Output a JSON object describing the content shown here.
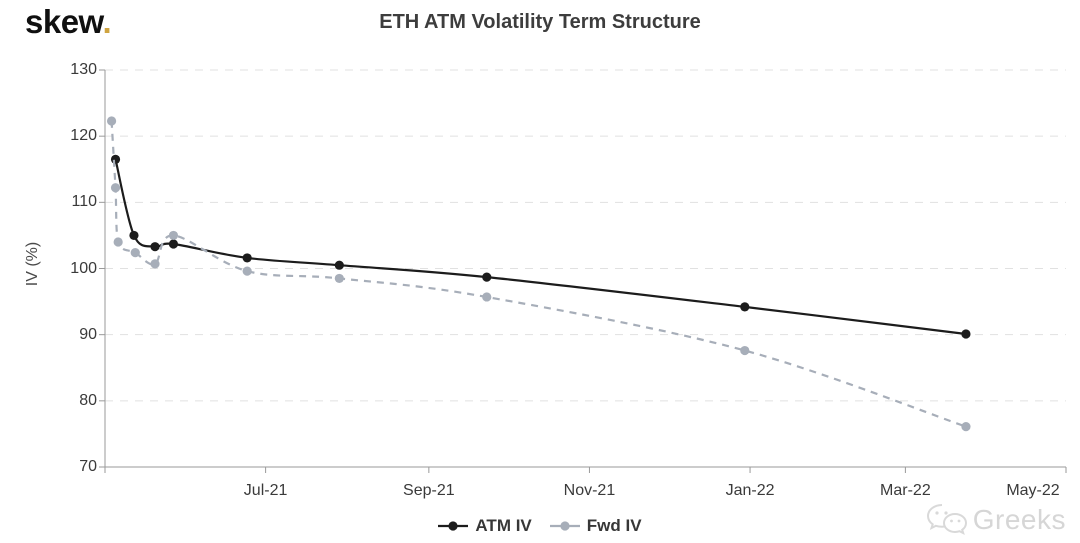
{
  "logo": {
    "text": "skew",
    "dot": ".",
    "dot_color": "#cfa440"
  },
  "header": {
    "title": "ETH ATM Volatility Term Structure"
  },
  "watermark": {
    "icon": "wechat-icon",
    "text": "Greeks"
  },
  "legend": {
    "items": [
      {
        "label": "ATM IV"
      },
      {
        "label": "Fwd IV"
      }
    ]
  },
  "chart_data": {
    "type": "line",
    "title": "ETH ATM Volatility Term Structure",
    "xlabel": "",
    "ylabel": "IV (%)",
    "ylim": [
      70,
      130
    ],
    "yticks": [
      70,
      80,
      90,
      100,
      110,
      120,
      130
    ],
    "grid": "horizontal-dashed",
    "legend_position": "bottom-center",
    "x_unit": "days since 2021-05-01",
    "x_range_days": 365,
    "xticks": [
      {
        "label": "Jul-21",
        "day": 61
      },
      {
        "label": "Sep-21",
        "day": 123
      },
      {
        "label": "Nov-21",
        "day": 184
      },
      {
        "label": "Jan-22",
        "day": 245
      },
      {
        "label": "Mar-22",
        "day": 304
      },
      {
        "label": "May-22",
        "day": 365
      }
    ],
    "series": [
      {
        "name": "ATM IV",
        "color": "#1c1c1c",
        "line_style": "solid",
        "marker": "filled-circle",
        "points": [
          [
            4,
            116.5
          ],
          [
            11,
            105.0
          ],
          [
            19,
            103.3
          ],
          [
            26,
            103.7
          ],
          [
            54,
            101.6
          ],
          [
            89,
            100.5
          ],
          [
            145,
            98.7
          ],
          [
            243,
            94.2
          ],
          [
            327,
            90.1
          ]
        ]
      },
      {
        "name": "Fwd IV",
        "color": "#a7aeb9",
        "line_style": "dashed",
        "marker": "filled-circle",
        "points": [
          [
            2.5,
            122.3
          ],
          [
            4,
            112.2
          ],
          [
            5,
            104.0
          ],
          [
            11.5,
            102.4
          ],
          [
            19,
            100.7
          ],
          [
            26,
            105.0
          ],
          [
            54,
            99.6
          ],
          [
            89,
            98.5
          ],
          [
            145,
            95.7
          ],
          [
            243,
            87.6
          ],
          [
            327,
            76.1
          ]
        ]
      }
    ],
    "colors": {
      "grid": "#e1e1e1",
      "axis": "#9a9a9a",
      "tick_text": "#3a3a3a"
    }
  }
}
